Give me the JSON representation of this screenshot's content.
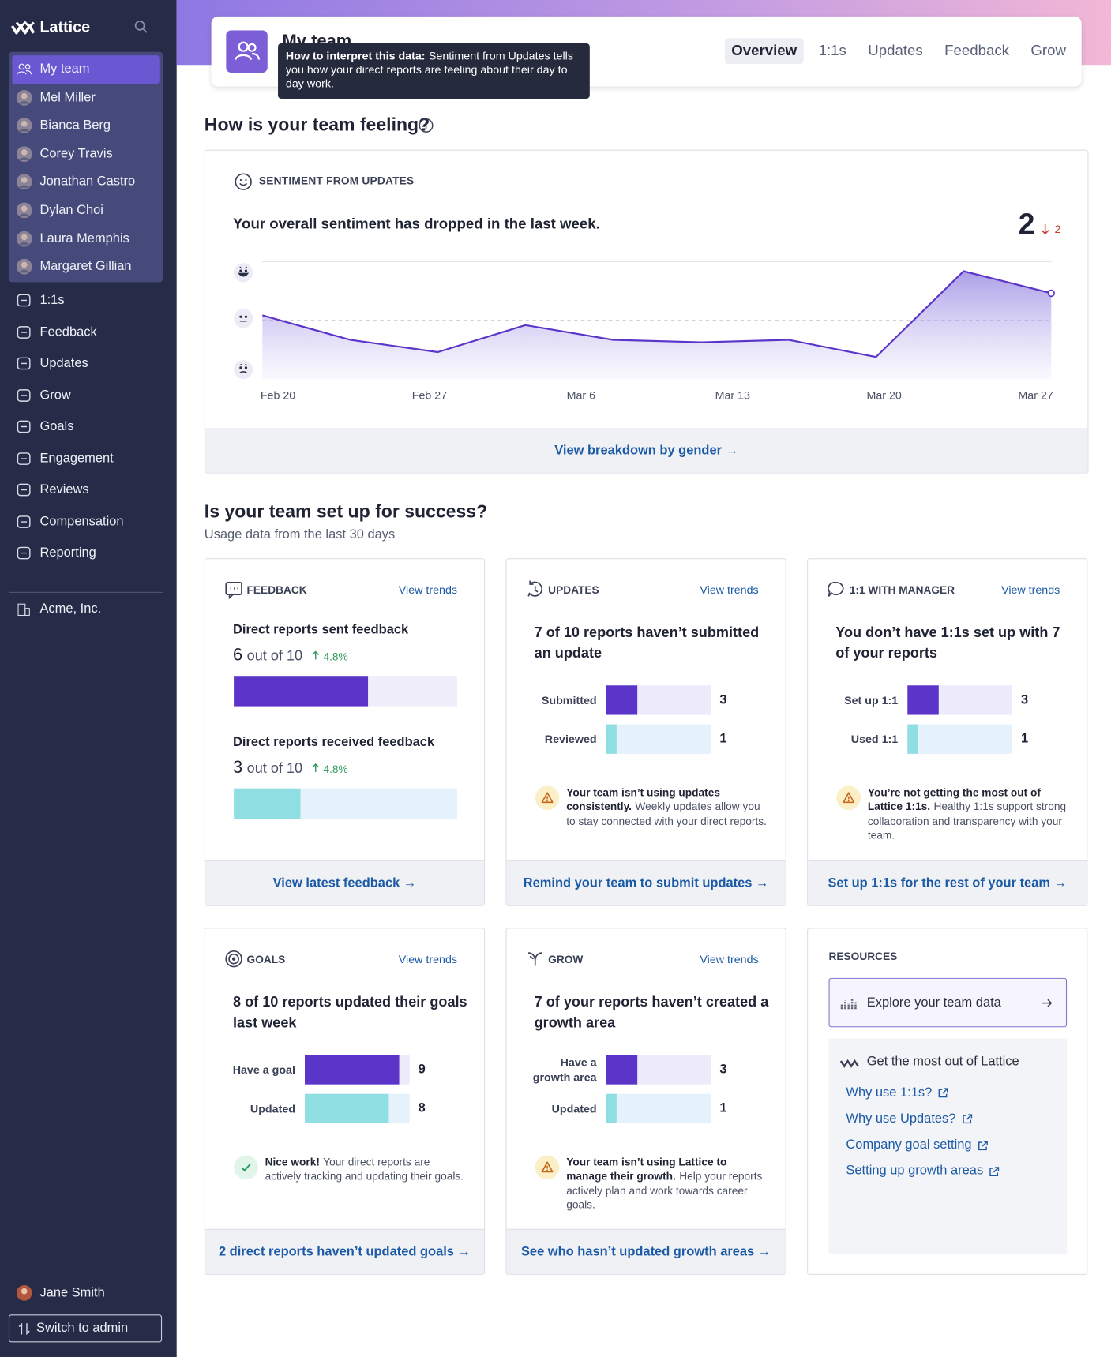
{
  "sidebar": {
    "brand": "Lattice",
    "team": [
      "My team",
      "Mel Miller",
      "Bianca Berg",
      "Corey Travis",
      "Jonathan Castro",
      "Dylan Choi",
      "Laura Memphis",
      "Margaret Gillian"
    ],
    "nav": [
      "1:1s",
      "Feedback",
      "Updates",
      "Grow",
      "Goals",
      "Engagement",
      "Reviews",
      "Compensation",
      "Reporting"
    ],
    "company": "Acme, Inc.",
    "user": "Jane Smith",
    "switch": "Switch to admin"
  },
  "header": {
    "title": "My team",
    "tabs": [
      "Overview",
      "1:1s",
      "Updates",
      "Feedback",
      "Grow"
    ],
    "active_tab": 0,
    "tooltip": {
      "bold": "How to interpret this data:",
      "text": "Sentiment from Updates tells you how your direct reports are feeling about their day to day work."
    }
  },
  "feeling": {
    "heading": "How is your team feeling?",
    "label": "SENTIMENT FROM UPDATES",
    "summary": "Your overall sentiment has dropped in the last week.",
    "score": 2,
    "change": 2,
    "link": "View breakdown by gender →"
  },
  "chart_data": {
    "type": "line",
    "x_labels": [
      "Feb 20",
      "Feb 27",
      "Mar 6",
      "Mar 13",
      "Mar 20",
      "Mar 27"
    ],
    "values": [
      2.1,
      1.6,
      1.35,
      1.9,
      1.6,
      1.55,
      1.6,
      1.25,
      3.0,
      2.55
    ],
    "ylim": [
      0.8,
      3.2
    ],
    "reference_line": 2,
    "color": "#5b35c9"
  },
  "success": {
    "heading": "Is your team set up for success?",
    "subheading": "Usage data from the last 30 days"
  },
  "cards": [
    {
      "kind": "feedback",
      "label": "FEEDBACK",
      "trend": "View trends",
      "max": 10,
      "stats": [
        {
          "title": "Direct reports sent feedback",
          "value": 6,
          "out_of": "out of 10",
          "change": "4.8%"
        },
        {
          "title": "Direct reports received feedback",
          "value": 3,
          "out_of": "out of 10",
          "change": "4.8%"
        }
      ],
      "link": "View latest feedback →"
    },
    {
      "kind": "updates",
      "label": "UPDATES",
      "trend": "View trends",
      "title": "7 of 10 reports haven’t submitted an update",
      "max": 10,
      "bars": [
        {
          "label": "Submitted",
          "value": 3
        },
        {
          "label": "Reviewed",
          "value": 1
        }
      ],
      "note_icon": "warning",
      "note_bold": "Your team isn’t using updates consistently.",
      "note": "Weekly updates allow you to stay connected with your direct reports.",
      "link": "Remind your team to submit updates →"
    },
    {
      "kind": "oneonone",
      "label": "1:1 WITH MANAGER",
      "trend": "View trends",
      "title": "You don’t have 1:1s set up with 7 of your reports",
      "max": 10,
      "bars": [
        {
          "label": "Set up 1:1",
          "value": 3
        },
        {
          "label": "Used 1:1",
          "value": 1
        }
      ],
      "note_icon": "warning",
      "note_bold": "You’re not getting the most out of Lattice 1:1s.",
      "note": "Healthy 1:1s support strong collaboration and transparency with your team.",
      "link": "Set up 1:1s for the rest of your team →"
    },
    {
      "kind": "goals",
      "label": "GOALS",
      "trend": "View trends",
      "title": "8 of 10 reports updated their goals last week",
      "max": 10,
      "bars": [
        {
          "label": "Have a goal",
          "value": 9
        },
        {
          "label": "Updated",
          "value": 8
        }
      ],
      "note_icon": "check",
      "note_bold": "Nice work!",
      "note": "Your direct reports are actively tracking and updating their goals.",
      "link": "2 direct reports haven’t updated goals →"
    },
    {
      "kind": "grow",
      "label": "GROW",
      "trend": "View trends",
      "title": "7 of your reports haven’t created a growth area",
      "max": 10,
      "bars": [
        {
          "label": "Have a growth area",
          "value": 3
        },
        {
          "label": "Updated",
          "value": 1
        }
      ],
      "note_icon": "warning",
      "note_bold": "Your team isn’t using Lattice to manage their growth.",
      "note": "Help your reports actively plan and work towards career goals.",
      "link": "See who hasn’t updated growth areas →"
    }
  ],
  "resources": {
    "label": "RESOURCES",
    "explore": "Explore your team data",
    "promo": "Get the most out of Lattice",
    "links": [
      "Why use 1:1s?",
      "Why use Updates?",
      "Company goal setting",
      "Setting up growth areas"
    ]
  }
}
